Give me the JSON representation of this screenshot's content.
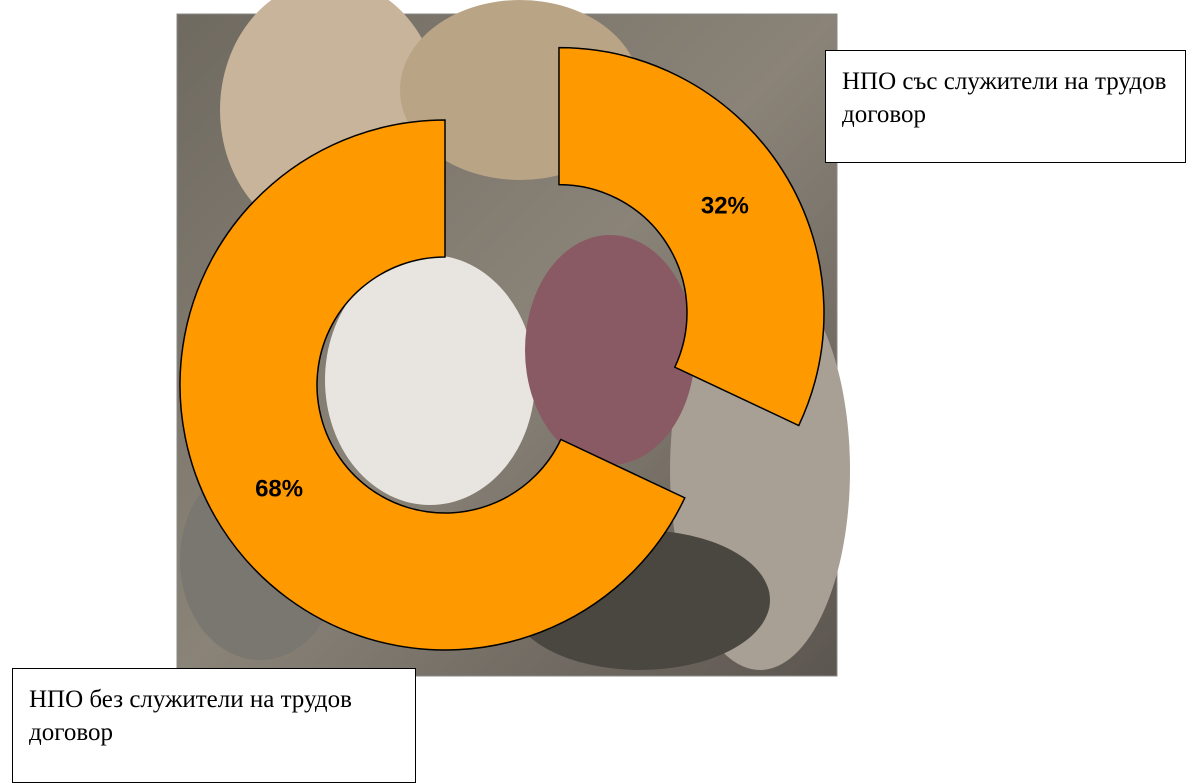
{
  "chart_data": {
    "type": "donut",
    "categories": [
      "НПО със служители на трудов договор",
      "НПО без служители на трудов договор"
    ],
    "values": [
      32,
      68
    ],
    "value_labels": [
      "32%",
      "68%"
    ],
    "color": "#ff9900"
  }
}
